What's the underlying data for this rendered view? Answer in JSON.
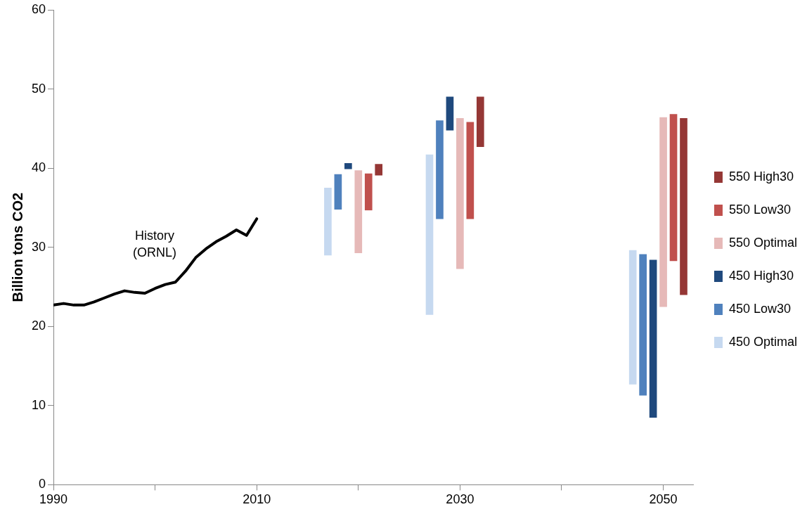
{
  "chart_data": {
    "type": "bar",
    "ylabel": "Billion tons CO2",
    "xlim": [
      1990,
      2053
    ],
    "xticks": [
      1990,
      {
        "value": 2000,
        "label": null
      },
      2010,
      {
        "value": 2020,
        "label": null
      },
      2030,
      {
        "value": 2040,
        "label": null
      },
      2050
    ],
    "ylim": [
      0,
      60
    ],
    "yticks": [
      0,
      10,
      20,
      30,
      40,
      50,
      60
    ],
    "grid": false,
    "legend": "right",
    "annotations": [
      "History (ORNL)"
    ],
    "series": [
      {
        "name": "550 High30",
        "color": "#953735",
        "x": [
          2022,
          2032,
          2052
        ],
        "base": [
          39.1,
          42.7,
          24.0
        ],
        "values": [
          1.4,
          6.3,
          22.3
        ]
      },
      {
        "name": "550 Low30",
        "color": "#c0504d",
        "x": [
          2021,
          2031,
          2051
        ],
        "base": [
          34.7,
          33.6,
          28.3
        ],
        "values": [
          4.6,
          12.2,
          18.5
        ]
      },
      {
        "name": "550 Optimal",
        "color": "#e6b9b8",
        "x": [
          2020,
          2030,
          2050
        ],
        "base": [
          29.3,
          27.3,
          22.5
        ],
        "values": [
          10.4,
          19.0,
          23.9
        ]
      },
      {
        "name": "450 High30",
        "color": "#1f497d",
        "x": [
          2019,
          2029,
          2049
        ],
        "base": [
          39.9,
          44.8,
          8.5
        ],
        "values": [
          0.7,
          4.2,
          19.9
        ]
      },
      {
        "name": "450 Low30",
        "color": "#4f81bd",
        "x": [
          2018,
          2028,
          2048
        ],
        "base": [
          34.8,
          33.6,
          11.3
        ],
        "values": [
          4.4,
          12.4,
          17.8
        ]
      },
      {
        "name": "450 Optimal",
        "color": "#c6d9f0",
        "x": [
          2017,
          2027,
          2047
        ],
        "base": [
          29.0,
          21.5,
          12.7
        ],
        "values": [
          8.5,
          20.2,
          16.9
        ]
      },
      {
        "type": "line",
        "color": "#000000",
        "marker": "none",
        "x": [
          1990,
          1991,
          1992,
          1993,
          1994,
          1995,
          1996,
          1997,
          1998,
          1999,
          2000,
          2001,
          2002,
          2003,
          2004,
          2005,
          2006,
          2007,
          2008,
          2009,
          2010
        ],
        "values": [
          22.7,
          22.9,
          22.7,
          22.7,
          23.1,
          23.6,
          24.1,
          24.5,
          24.3,
          24.2,
          24.8,
          25.3,
          25.6,
          27.0,
          28.7,
          29.8,
          30.7,
          31.4,
          32.2,
          31.5,
          33.6
        ]
      }
    ]
  }
}
